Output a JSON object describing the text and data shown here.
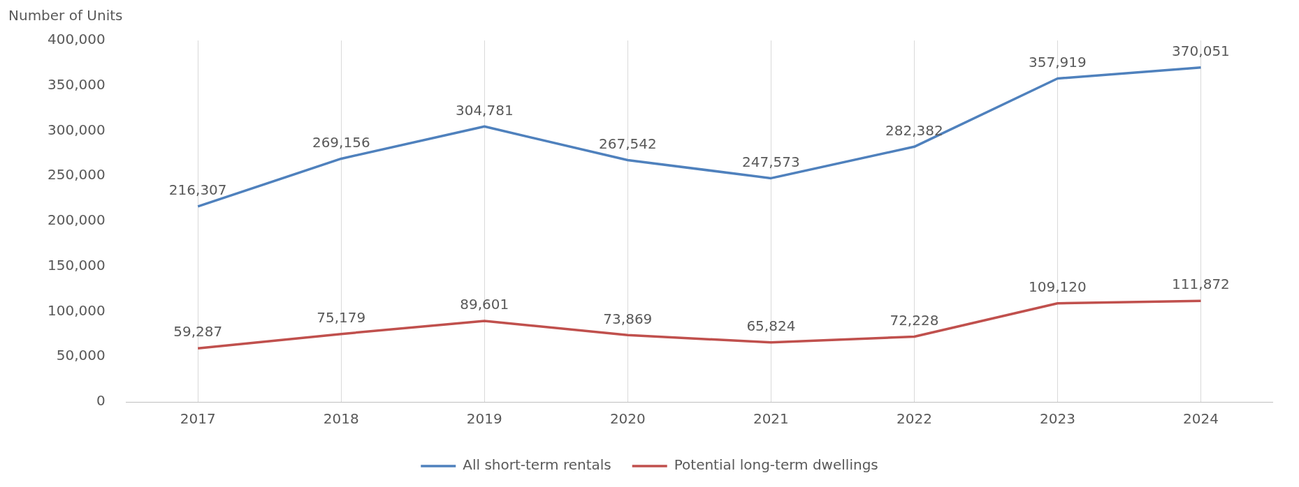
{
  "chart_data": {
    "type": "line",
    "ylabel": "Number of Units",
    "categories": [
      "2017",
      "2018",
      "2019",
      "2020",
      "2021",
      "2022",
      "2023",
      "2024"
    ],
    "series": [
      {
        "name": "All short-term rentals",
        "color": "#4f81bd",
        "values": [
          216307,
          269156,
          304781,
          267542,
          247573,
          282382,
          357919,
          370051
        ],
        "value_labels": [
          "216,307",
          "269,156",
          "304,781",
          "267,542",
          "247,573",
          "282,382",
          "357,919",
          "370,051"
        ]
      },
      {
        "name": "Potential long-term dwellings",
        "color": "#c0504d",
        "values": [
          59287,
          75179,
          89601,
          73869,
          65824,
          72228,
          109120,
          111872
        ],
        "value_labels": [
          "59,287",
          "75,179",
          "89,601",
          "73,869",
          "65,824",
          "72,228",
          "109,120",
          "111,872"
        ]
      }
    ],
    "ylim": [
      0,
      400000
    ],
    "yticks": [
      0,
      {
        "value": 50000,
        "label": "50,000"
      },
      {
        "value": 100000,
        "label": "100,000"
      },
      {
        "value": 150000,
        "label": "150,000"
      },
      {
        "value": 200000,
        "label": "200,000"
      },
      {
        "value": 250000,
        "label": "250,000"
      },
      {
        "value": 300000,
        "label": "300,000"
      },
      {
        "value": 350000,
        "label": "350,000"
      },
      {
        "value": 400000,
        "label": "400,000"
      }
    ],
    "grid": "x",
    "legend": "bottom",
    "marker": "none",
    "line_style": "solid"
  }
}
